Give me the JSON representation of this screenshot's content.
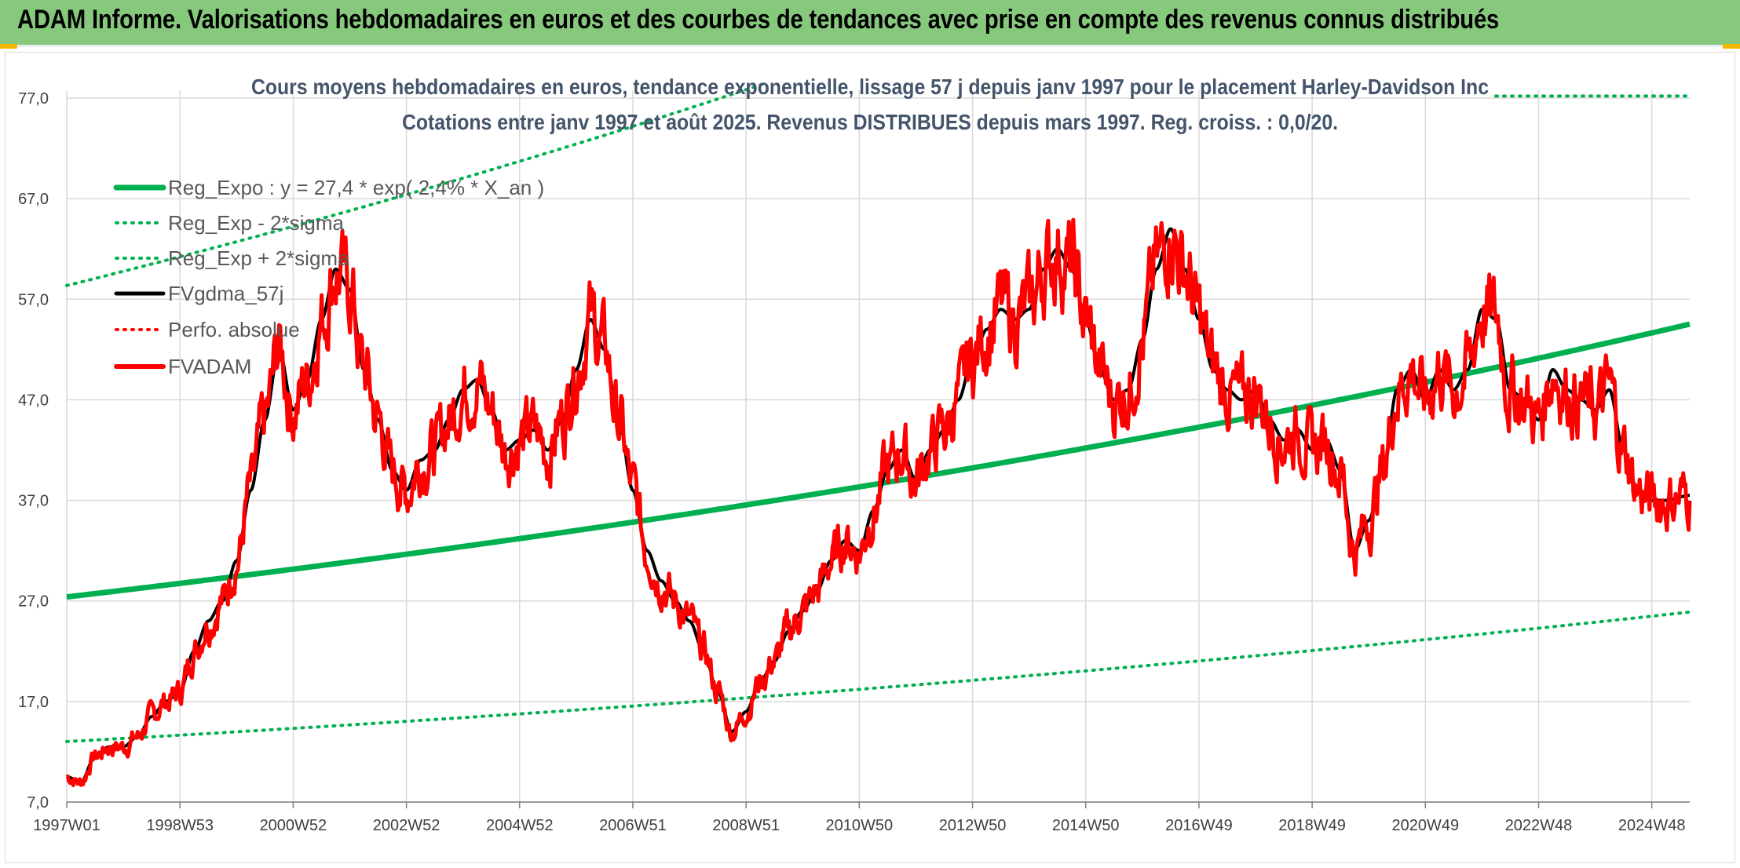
{
  "header": {
    "title": "ADAM Informe. Valorisations hebdomadaires en euros et des courbes de tendances avec prise en compte des revenus connus distribués"
  },
  "colors": {
    "banner": "#86c97c",
    "reg_green": "#00b050",
    "fvgdma": "#000000",
    "fvadam": "#ff0000",
    "perfo": "#ff0000"
  },
  "chart_data": {
    "type": "line",
    "title_line1": "Cours moyens hebdomadaires en euros, tendance exponentielle, lissage 57 j depuis janv 1997 pour le placement Harley-Davidson Inc",
    "title_line2": "Cotations entre janv 1997 et août 2025. Revenus DISTRIBUES depuis mars 1997. Reg. croiss. : 0,0/20.",
    "xlabel": "",
    "ylabel": "",
    "ylim": [
      7,
      77
    ],
    "y_ticks": [
      "7,0",
      "17,0",
      "27,0",
      "37,0",
      "47,0",
      "57,0",
      "67,0",
      "77,0"
    ],
    "x_tick_labels": [
      "1997W01",
      "1998W53",
      "2000W52",
      "2002W52",
      "2004W52",
      "2006W51",
      "2008W51",
      "2010W50",
      "2012W50",
      "2014W50",
      "2016W49",
      "2018W49",
      "2020W49",
      "2022W48",
      "2024W48"
    ],
    "x_range": [
      1997.0,
      2025.67
    ],
    "x_tick_years": [
      1997.0,
      1999.0,
      2001.0,
      2003.0,
      2005.0,
      2007.0,
      2009.0,
      2011.0,
      2013.0,
      2015.0,
      2017.0,
      2019.0,
      2021.0,
      2023.0,
      2025.0
    ],
    "grid": true,
    "legend_position": "top-left",
    "regression": {
      "a": 27.4,
      "rate": 0.024
    },
    "series": [
      {
        "name": "Reg_Expo : y = 27,4 * exp( 2,4% * X_an )",
        "style": "solid-thick",
        "color": "#00b050"
      },
      {
        "name": "Reg_Exp - 2*sigma",
        "style": "dotted",
        "color": "#00b050"
      },
      {
        "name": "Reg_Exp + 2*sigma",
        "style": "dotted",
        "color": "#00b050"
      },
      {
        "name": "FVgdma_57j",
        "style": "solid",
        "color": "#000000"
      },
      {
        "name": "Perfo. absolue",
        "style": "dotted",
        "color": "#ff0000"
      },
      {
        "name": "FVADAM",
        "style": "solid-thick",
        "color": "#ff0000"
      }
    ],
    "band_factors": {
      "lower": 0.475,
      "upper": 2.13
    },
    "fvadam_points": [
      [
        1997.0,
        9.5
      ],
      [
        1997.25,
        9.0
      ],
      [
        1997.5,
        11.5
      ],
      [
        1997.75,
        12.5
      ],
      [
        1998.0,
        12.5
      ],
      [
        1998.25,
        13.5
      ],
      [
        1998.5,
        15.5
      ],
      [
        1998.75,
        17.0
      ],
      [
        1999.0,
        18.0
      ],
      [
        1999.25,
        22.0
      ],
      [
        1999.5,
        25.0
      ],
      [
        1999.75,
        27.0
      ],
      [
        2000.0,
        31.0
      ],
      [
        2000.25,
        38.0
      ],
      [
        2000.5,
        45.0
      ],
      [
        2000.75,
        52.0
      ],
      [
        2001.0,
        46.0
      ],
      [
        2001.25,
        49.0
      ],
      [
        2001.5,
        55.0
      ],
      [
        2001.75,
        60.0
      ],
      [
        2002.0,
        58.0
      ],
      [
        2002.25,
        50.0
      ],
      [
        2002.5,
        45.0
      ],
      [
        2002.75,
        40.0
      ],
      [
        2003.0,
        38.0
      ],
      [
        2003.25,
        41.0
      ],
      [
        2003.5,
        42.0
      ],
      [
        2003.75,
        45.0
      ],
      [
        2004.0,
        48.0
      ],
      [
        2004.25,
        49.0
      ],
      [
        2004.5,
        46.0
      ],
      [
        2004.75,
        42.0
      ],
      [
        2005.0,
        43.0
      ],
      [
        2005.25,
        44.0
      ],
      [
        2005.5,
        42.0
      ],
      [
        2005.75,
        45.0
      ],
      [
        2006.0,
        50.0
      ],
      [
        2006.25,
        55.0
      ],
      [
        2006.5,
        52.0
      ],
      [
        2006.75,
        45.0
      ],
      [
        2007.0,
        38.0
      ],
      [
        2007.25,
        32.0
      ],
      [
        2007.5,
        29.0
      ],
      [
        2007.75,
        27.0
      ],
      [
        2008.0,
        25.0
      ],
      [
        2008.25,
        22.0
      ],
      [
        2008.5,
        18.0
      ],
      [
        2008.75,
        14.0
      ],
      [
        2009.0,
        16.0
      ],
      [
        2009.25,
        19.0
      ],
      [
        2009.5,
        21.0
      ],
      [
        2009.75,
        24.0
      ],
      [
        2010.0,
        26.0
      ],
      [
        2010.25,
        28.0
      ],
      [
        2010.5,
        31.0
      ],
      [
        2010.75,
        33.0
      ],
      [
        2011.0,
        32.0
      ],
      [
        2011.25,
        36.0
      ],
      [
        2011.5,
        40.0
      ],
      [
        2011.75,
        42.0
      ],
      [
        2012.0,
        39.0
      ],
      [
        2012.25,
        42.0
      ],
      [
        2012.5,
        44.0
      ],
      [
        2012.75,
        47.0
      ],
      [
        2013.0,
        51.0
      ],
      [
        2013.25,
        54.0
      ],
      [
        2013.5,
        56.0
      ],
      [
        2013.75,
        55.0
      ],
      [
        2014.0,
        56.0
      ],
      [
        2014.25,
        60.0
      ],
      [
        2014.5,
        62.0
      ],
      [
        2014.75,
        60.0
      ],
      [
        2015.0,
        55.0
      ],
      [
        2015.25,
        50.0
      ],
      [
        2015.5,
        47.0
      ],
      [
        2015.75,
        48.0
      ],
      [
        2016.0,
        53.0
      ],
      [
        2016.25,
        60.0
      ],
      [
        2016.5,
        64.0
      ],
      [
        2016.75,
        60.0
      ],
      [
        2017.0,
        55.0
      ],
      [
        2017.25,
        50.0
      ],
      [
        2017.5,
        48.0
      ],
      [
        2017.75,
        47.0
      ],
      [
        2018.0,
        48.0
      ],
      [
        2018.25,
        45.0
      ],
      [
        2018.5,
        43.0
      ],
      [
        2018.75,
        44.0
      ],
      [
        2019.0,
        42.0
      ],
      [
        2019.25,
        43.0
      ],
      [
        2019.5,
        40.0
      ],
      [
        2019.75,
        32.0
      ],
      [
        2020.0,
        35.0
      ],
      [
        2020.25,
        40.0
      ],
      [
        2020.5,
        48.0
      ],
      [
        2020.75,
        50.0
      ],
      [
        2021.0,
        47.0
      ],
      [
        2021.25,
        50.0
      ],
      [
        2021.5,
        48.0
      ],
      [
        2021.75,
        50.0
      ],
      [
        2022.0,
        56.0
      ],
      [
        2022.25,
        55.0
      ],
      [
        2022.5,
        48.0
      ],
      [
        2022.75,
        47.0
      ],
      [
        2023.0,
        45.0
      ],
      [
        2023.25,
        50.0
      ],
      [
        2023.5,
        48.0
      ],
      [
        2023.75,
        47.0
      ],
      [
        2024.0,
        46.0
      ],
      [
        2024.25,
        48.0
      ],
      [
        2024.5,
        42.0
      ],
      [
        2024.75,
        38.0
      ],
      [
        2025.0,
        37.0
      ],
      [
        2025.25,
        37.0
      ],
      [
        2025.67,
        37.5
      ]
    ]
  }
}
